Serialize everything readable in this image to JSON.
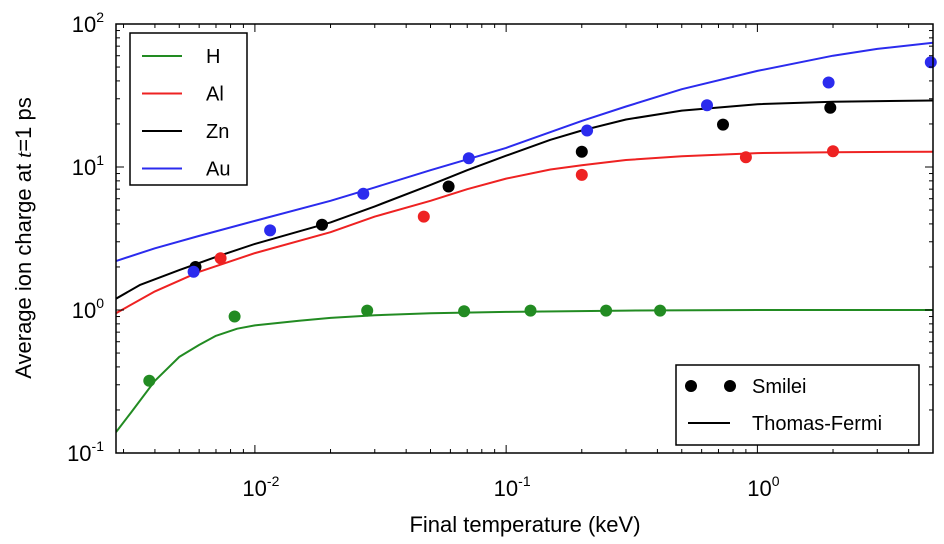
{
  "chart_data": {
    "type": "scatter",
    "x_scale": "log",
    "y_scale": "log",
    "xlim": [
      0.0028,
      5.0
    ],
    "ylim": [
      0.1,
      100
    ],
    "xlabel": "Final temperature (keV)",
    "ylabel": "Average ion charge at t=1 ps",
    "ylabel_parts": {
      "prefix": "Average ion charge at ",
      "var": "t",
      "eq": "=1",
      "suffix": " ps"
    },
    "x_ticks": [
      {
        "value": 0.01,
        "base": "10",
        "exp": "-2"
      },
      {
        "value": 0.1,
        "base": "10",
        "exp": "-1"
      },
      {
        "value": 1,
        "base": "10",
        "exp": "0"
      }
    ],
    "y_ticks": [
      {
        "value": 0.1,
        "base": "10",
        "exp": "-1"
      },
      {
        "value": 1,
        "base": "10",
        "exp": "0"
      },
      {
        "value": 10,
        "base": "10",
        "exp": "1"
      },
      {
        "value": 100,
        "base": "10",
        "exp": "2"
      }
    ],
    "grid": false,
    "legend_elements": {
      "position": "top-left",
      "entries": [
        {
          "label": "H",
          "color": "#228b22"
        },
        {
          "label": "Al",
          "color": "#ee2222"
        },
        {
          "label": "Zn",
          "color": "#000000"
        },
        {
          "label": "Au",
          "color": "#2b2bee"
        }
      ]
    },
    "legend_methods": {
      "position": "bottom-right",
      "entries": [
        {
          "label": "Smilei",
          "style": "markers"
        },
        {
          "label": "Thomas-Fermi",
          "style": "line"
        }
      ]
    },
    "series": [
      {
        "name": "H",
        "color": "#228b22",
        "curve": [
          [
            0.0028,
            0.14
          ],
          [
            0.0032,
            0.19
          ],
          [
            0.004,
            0.32
          ],
          [
            0.005,
            0.47
          ],
          [
            0.006,
            0.57
          ],
          [
            0.007,
            0.66
          ],
          [
            0.0085,
            0.74
          ],
          [
            0.01,
            0.78
          ],
          [
            0.015,
            0.84
          ],
          [
            0.02,
            0.88
          ],
          [
            0.03,
            0.92
          ],
          [
            0.05,
            0.95
          ],
          [
            0.1,
            0.97
          ],
          [
            0.3,
            0.99
          ],
          [
            1,
            1.0
          ],
          [
            5,
            1.0
          ]
        ],
        "points": [
          [
            0.0038,
            0.32
          ],
          [
            0.0083,
            0.9
          ],
          [
            0.028,
            0.99
          ],
          [
            0.068,
            0.98
          ],
          [
            0.125,
            0.99
          ],
          [
            0.25,
            0.99
          ],
          [
            0.41,
            0.99
          ]
        ]
      },
      {
        "name": "Al",
        "color": "#ee2222",
        "curve": [
          [
            0.0028,
            0.95
          ],
          [
            0.004,
            1.35
          ],
          [
            0.006,
            1.85
          ],
          [
            0.01,
            2.5
          ],
          [
            0.02,
            3.5
          ],
          [
            0.03,
            4.5
          ],
          [
            0.05,
            5.8
          ],
          [
            0.07,
            7.0
          ],
          [
            0.1,
            8.3
          ],
          [
            0.15,
            9.6
          ],
          [
            0.2,
            10.3
          ],
          [
            0.3,
            11.2
          ],
          [
            0.5,
            11.9
          ],
          [
            0.8,
            12.3
          ],
          [
            1,
            12.5
          ],
          [
            2,
            12.7
          ],
          [
            5,
            12.8
          ]
        ],
        "points": [
          [
            0.0073,
            2.3
          ],
          [
            0.047,
            4.5
          ],
          [
            0.2,
            8.8
          ],
          [
            0.9,
            11.7
          ],
          [
            2.0,
            12.9
          ]
        ]
      },
      {
        "name": "Zn",
        "color": "#000000",
        "curve": [
          [
            0.0028,
            1.2
          ],
          [
            0.0035,
            1.5
          ],
          [
            0.005,
            1.9
          ],
          [
            0.007,
            2.35
          ],
          [
            0.01,
            2.9
          ],
          [
            0.02,
            4.1
          ],
          [
            0.03,
            5.3
          ],
          [
            0.05,
            7.5
          ],
          [
            0.07,
            9.5
          ],
          [
            0.1,
            12.0
          ],
          [
            0.15,
            15.5
          ],
          [
            0.2,
            18.0
          ],
          [
            0.3,
            21.5
          ],
          [
            0.5,
            24.8
          ],
          [
            1,
            27.5
          ],
          [
            2,
            28.6
          ],
          [
            5,
            29.2
          ]
        ],
        "points": [
          [
            0.0058,
            2.0
          ],
          [
            0.0185,
            3.95
          ],
          [
            0.059,
            7.3
          ],
          [
            0.2,
            12.8
          ],
          [
            0.73,
            19.8
          ],
          [
            1.95,
            26.0
          ]
        ]
      },
      {
        "name": "Au",
        "color": "#2b2bee",
        "curve": [
          [
            0.0028,
            2.2
          ],
          [
            0.004,
            2.7
          ],
          [
            0.006,
            3.3
          ],
          [
            0.01,
            4.2
          ],
          [
            0.02,
            5.8
          ],
          [
            0.03,
            7.2
          ],
          [
            0.05,
            9.5
          ],
          [
            0.1,
            13.6
          ],
          [
            0.2,
            21.0
          ],
          [
            0.3,
            26.5
          ],
          [
            0.5,
            35.0
          ],
          [
            1,
            47.0
          ],
          [
            2,
            60.0
          ],
          [
            3,
            67.0
          ],
          [
            5,
            74.0
          ]
        ],
        "points": [
          [
            0.0057,
            1.85
          ],
          [
            0.0115,
            3.6
          ],
          [
            0.027,
            6.5
          ],
          [
            0.071,
            11.5
          ],
          [
            0.21,
            18.0
          ],
          [
            0.63,
            27.0
          ],
          [
            1.92,
            39.0
          ],
          [
            4.9,
            54.0
          ]
        ]
      }
    ]
  }
}
